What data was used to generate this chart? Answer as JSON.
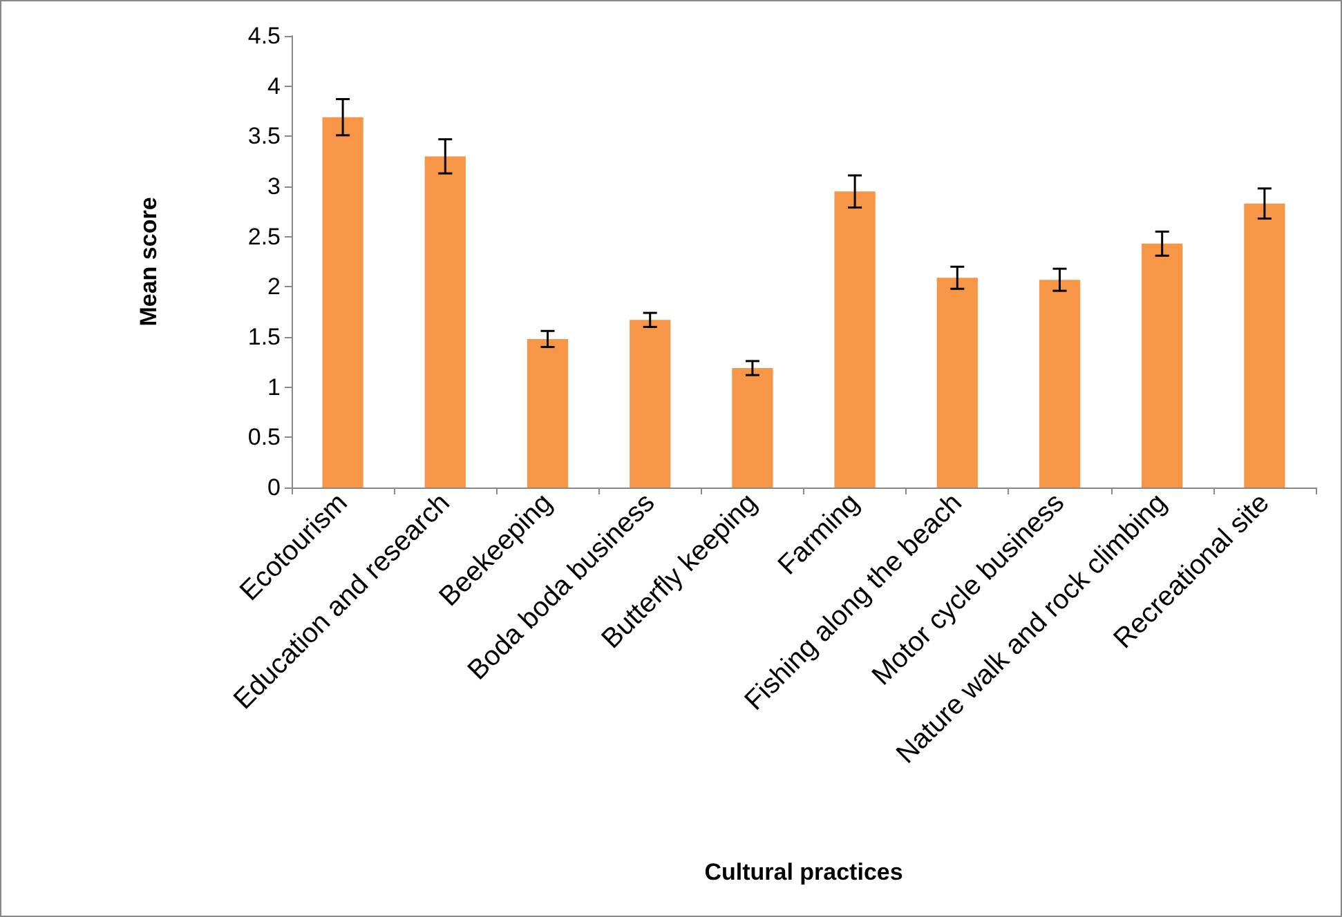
{
  "chart_data": {
    "type": "bar",
    "xlabel": "Cultural practices",
    "ylabel": "Mean score",
    "categories": [
      "Ecotourism",
      "Education and research",
      "Beekeeping",
      "Boda boda business",
      "Butterfly keeping",
      "Farming",
      "Fishing along the beach",
      "Motor cycle business",
      "Nature walk and rock climbing",
      "Recreational site"
    ],
    "values": [
      3.69,
      3.3,
      1.48,
      1.67,
      1.19,
      2.95,
      2.09,
      2.07,
      2.43,
      2.83
    ],
    "errors": [
      0.18,
      0.17,
      0.08,
      0.07,
      0.07,
      0.16,
      0.11,
      0.11,
      0.12,
      0.15
    ],
    "color": "#f79646",
    "ylim": [
      0,
      4.5
    ],
    "yticks": [
      0,
      0.5,
      1,
      1.5,
      2,
      2.5,
      3,
      3.5,
      4,
      4.5
    ],
    "grid": false
  }
}
